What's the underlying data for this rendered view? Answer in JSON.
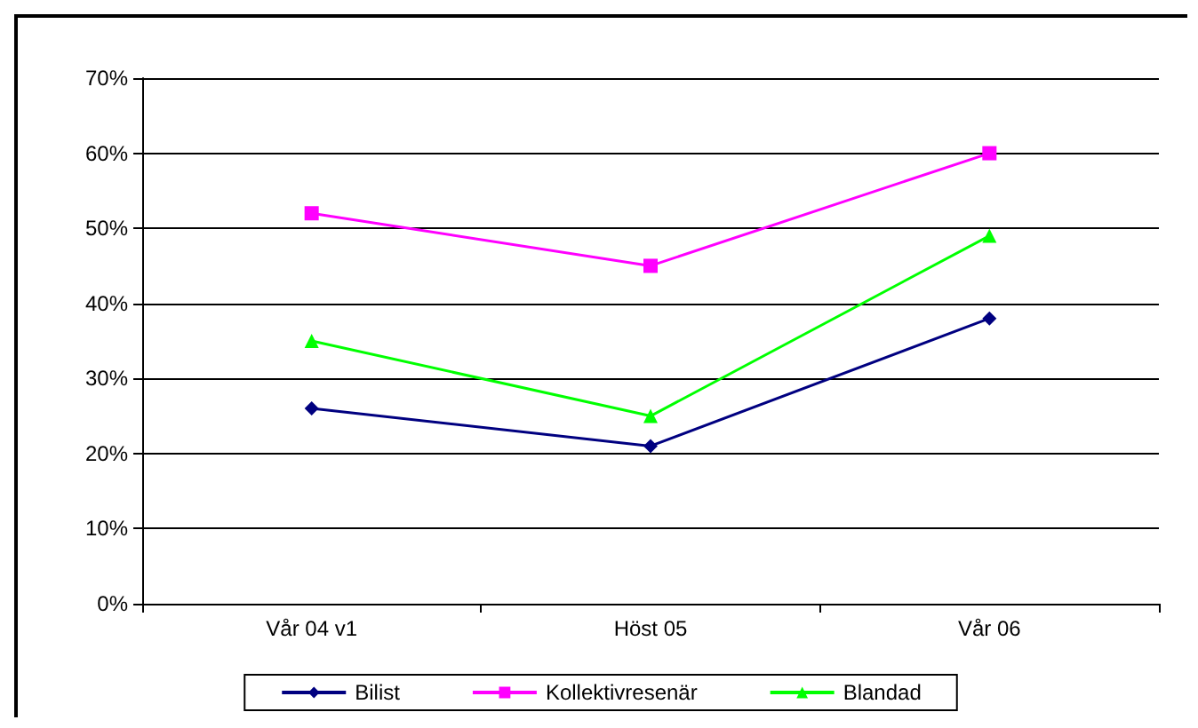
{
  "chart_data": {
    "type": "line",
    "categories": [
      "Vår 04 v1",
      "Höst 05",
      "Vår 06"
    ],
    "series": [
      {
        "name": "Bilist",
        "color": "#000080",
        "marker": "diamond",
        "values": [
          26,
          21,
          38
        ]
      },
      {
        "name": "Kollektivresenär",
        "color": "#ff00ff",
        "marker": "square",
        "values": [
          52,
          45,
          60
        ]
      },
      {
        "name": "Blandad",
        "color": "#00ff00",
        "marker": "triangle",
        "values": [
          35,
          25,
          49
        ]
      }
    ],
    "ylim": [
      0,
      70
    ],
    "yticks": [
      {
        "value": 0,
        "label": "0%"
      },
      {
        "value": 10,
        "label": "10%"
      },
      {
        "value": 20,
        "label": "20%"
      },
      {
        "value": 30,
        "label": "30%"
      },
      {
        "value": 40,
        "label": "40%"
      },
      {
        "value": 50,
        "label": "50%"
      },
      {
        "value": 60,
        "label": "60%"
      },
      {
        "value": 70,
        "label": "70%"
      }
    ],
    "grid": "y",
    "legend": "bottom",
    "line_style": "solid"
  }
}
